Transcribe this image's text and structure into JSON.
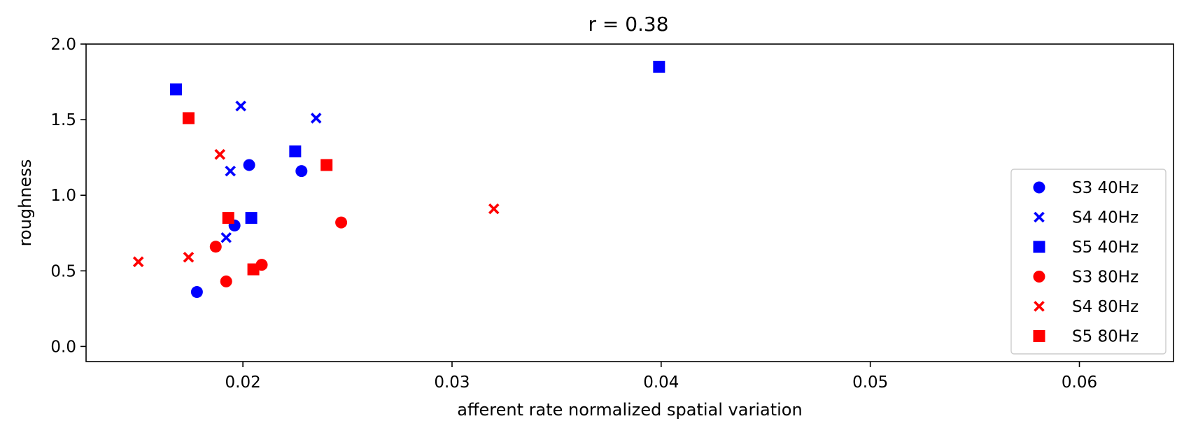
{
  "chart_data": {
    "type": "scatter",
    "title": "r = 0.38",
    "xlabel": "afferent rate normalized spatial variation",
    "ylabel": "roughness",
    "xlim": [
      0.0125,
      0.0645
    ],
    "ylim": [
      -0.1,
      2.0
    ],
    "xticks": [
      0.02,
      0.03,
      0.04,
      0.05,
      0.06
    ],
    "xtick_labels": [
      "0.02",
      "0.03",
      "0.04",
      "0.05",
      "0.06"
    ],
    "yticks": [
      0.0,
      0.5,
      1.0,
      1.5,
      2.0
    ],
    "ytick_labels": [
      "0.0",
      "0.5",
      "1.0",
      "1.5",
      "2.0"
    ],
    "grid": false,
    "legend_position": "lower-right",
    "series": [
      {
        "name": "S3 40Hz",
        "color": "#0000ff",
        "marker": "circle",
        "points": [
          [
            0.0178,
            0.36
          ],
          [
            0.0196,
            0.8
          ],
          [
            0.0203,
            1.2
          ],
          [
            0.0228,
            1.16
          ]
        ]
      },
      {
        "name": "S4 40Hz",
        "color": "#0000ff",
        "marker": "x",
        "points": [
          [
            0.0192,
            0.72
          ],
          [
            0.0194,
            1.16
          ],
          [
            0.0199,
            1.59
          ],
          [
            0.0235,
            1.51
          ]
        ]
      },
      {
        "name": "S5 40Hz",
        "color": "#0000ff",
        "marker": "square",
        "points": [
          [
            0.0168,
            1.7
          ],
          [
            0.0204,
            0.85
          ],
          [
            0.0225,
            1.29
          ],
          [
            0.0399,
            1.85
          ]
        ]
      },
      {
        "name": "S3 80Hz",
        "color": "#ff0000",
        "marker": "circle",
        "points": [
          [
            0.0187,
            0.66
          ],
          [
            0.0192,
            0.43
          ],
          [
            0.0209,
            0.54
          ],
          [
            0.0247,
            0.82
          ]
        ]
      },
      {
        "name": "S4 80Hz",
        "color": "#ff0000",
        "marker": "x",
        "points": [
          [
            0.015,
            0.56
          ],
          [
            0.0174,
            0.59
          ],
          [
            0.0189,
            1.27
          ],
          [
            0.032,
            0.91
          ]
        ]
      },
      {
        "name": "S5 80Hz",
        "color": "#ff0000",
        "marker": "square",
        "points": [
          [
            0.0174,
            1.51
          ],
          [
            0.0193,
            0.85
          ],
          [
            0.0205,
            0.51
          ],
          [
            0.024,
            1.2
          ]
        ]
      }
    ]
  }
}
